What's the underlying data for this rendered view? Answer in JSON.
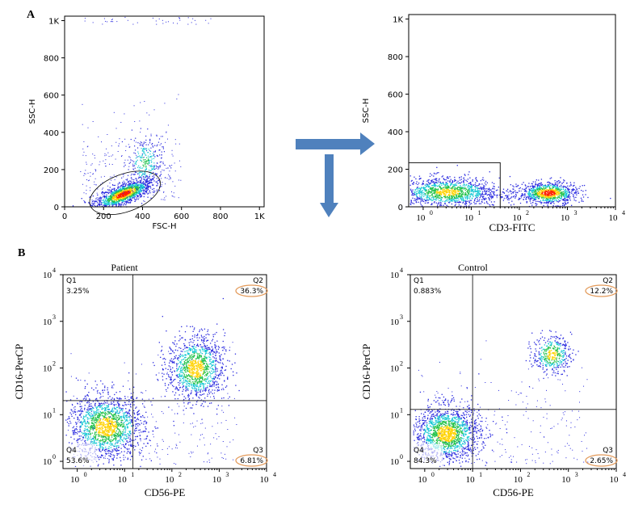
{
  "panel_letters": [
    "A",
    "B"
  ],
  "colors": {
    "density_low": "#2a2adf",
    "density_mid": "#19c9d4",
    "density_high": "#22c24a",
    "density_peak": "#ff2000",
    "arrow": "#4f81bd",
    "highlight_ring": "#e39a5a",
    "frame": "#000000"
  },
  "chart_data": [
    {
      "id": "A1",
      "type": "scatter",
      "xlabel": "FSC-H",
      "ylabel": "SSC-H",
      "xlim": [
        0,
        1024
      ],
      "ylim": [
        0,
        1024
      ],
      "x_ticks": [
        "0",
        "200",
        "400",
        "600",
        "800",
        "1K"
      ],
      "y_ticks": [
        "0",
        "200",
        "400",
        "600",
        "800",
        "1K"
      ],
      "x_tick_values": [
        0,
        200,
        400,
        600,
        800,
        1000
      ],
      "y_tick_values": [
        0,
        200,
        400,
        600,
        800,
        1000
      ],
      "gate": {
        "shape": "ellipse",
        "center": [
          310,
          75
        ],
        "radius": [
          190,
          75
        ],
        "tilt_deg": -20
      },
      "clusters": [
        {
          "center": [
            300,
            70
          ],
          "spread": [
            70,
            35
          ],
          "peak": [
            290,
            65
          ]
        },
        {
          "center": [
            410,
            240
          ],
          "spread": [
            45,
            70
          ]
        },
        {
          "center": [
            180,
            200
          ],
          "spread": [
            80,
            90
          ],
          "sparse": true
        }
      ]
    },
    {
      "id": "A2",
      "type": "scatter",
      "xlabel": "CD3-FITC",
      "ylabel": "SSC-H",
      "xscale": "log",
      "xlim": [
        0.5,
        10000
      ],
      "ylim": [
        0,
        1024
      ],
      "x_ticks": [
        "10",
        "10",
        "10",
        "10",
        "10"
      ],
      "x_tick_exponents": [
        "0",
        "1",
        "2",
        "3",
        "4"
      ],
      "y_ticks": [
        "0",
        "200",
        "400",
        "600",
        "800",
        "1K"
      ],
      "x_tick_values": [
        1,
        10,
        100,
        1000,
        10000
      ],
      "y_tick_values": [
        0,
        200,
        400,
        600,
        800,
        1000
      ],
      "gate": {
        "shape": "rectangle",
        "x": [
          0.5,
          40
        ],
        "y": [
          0,
          235
        ]
      },
      "clusters": [
        {
          "center_log10": 0.5,
          "center_y": 80,
          "spread": [
            0.55,
            40
          ]
        },
        {
          "center_log10": 2.6,
          "center_y": 75,
          "spread": [
            0.3,
            30
          ]
        }
      ]
    },
    {
      "id": "B1",
      "type": "scatter",
      "title": "Patient",
      "xlabel": "CD56-PE",
      "ylabel": "CD16-PerCP",
      "xscale": "log",
      "yscale": "log",
      "xlim": [
        0.5,
        10000
      ],
      "ylim": [
        0.7,
        10000
      ],
      "x_ticks": [
        "10",
        "10",
        "10",
        "10",
        "10"
      ],
      "x_tick_exponents": [
        "0",
        "1",
        "2",
        "3",
        "4"
      ],
      "y_ticks": [
        "10",
        "10",
        "10",
        "10",
        "10"
      ],
      "y_tick_exponents": [
        "0",
        "1",
        "2",
        "3",
        "4"
      ],
      "quadrant_split": {
        "x": 15,
        "y": 20
      },
      "quadrants": [
        {
          "name": "Q1",
          "value": "3.25%",
          "highlighted": false
        },
        {
          "name": "Q2",
          "value": "36.3%",
          "highlighted": true
        },
        {
          "name": "Q3",
          "value": "6.81%",
          "highlighted": true
        },
        {
          "name": "Q4",
          "value": "53.6%",
          "highlighted": false
        }
      ],
      "clusters": [
        {
          "center_log10": [
            0.6,
            0.75
          ],
          "spread": [
            0.4,
            0.35
          ]
        },
        {
          "center_log10": [
            2.5,
            2.0
          ],
          "spread": [
            0.3,
            0.35
          ]
        }
      ]
    },
    {
      "id": "B2",
      "type": "scatter",
      "title": "Control",
      "xlabel": "CD56-PE",
      "ylabel": "CD16-PerCP",
      "xscale": "log",
      "yscale": "log",
      "xlim": [
        0.5,
        10000
      ],
      "ylim": [
        0.7,
        10000
      ],
      "x_ticks": [
        "10",
        "10",
        "10",
        "10",
        "10"
      ],
      "x_tick_exponents": [
        "0",
        "1",
        "2",
        "3",
        "4"
      ],
      "y_ticks": [
        "10",
        "10",
        "10",
        "10",
        "10"
      ],
      "y_tick_exponents": [
        "0",
        "1",
        "2",
        "3",
        "4"
      ],
      "quadrant_split": {
        "x": 10,
        "y": 13
      },
      "quadrants": [
        {
          "name": "Q1",
          "value": "0.883%",
          "highlighted": false
        },
        {
          "name": "Q2",
          "value": "12.2%",
          "highlighted": true
        },
        {
          "name": "Q3",
          "value": "2.65%",
          "highlighted": true
        },
        {
          "name": "Q4",
          "value": "84.3%",
          "highlighted": false
        }
      ],
      "clusters": [
        {
          "center_log10": [
            0.45,
            0.6
          ],
          "spread": [
            0.35,
            0.3
          ]
        },
        {
          "center_log10": [
            2.65,
            2.3
          ],
          "spread": [
            0.2,
            0.2
          ]
        }
      ]
    }
  ]
}
